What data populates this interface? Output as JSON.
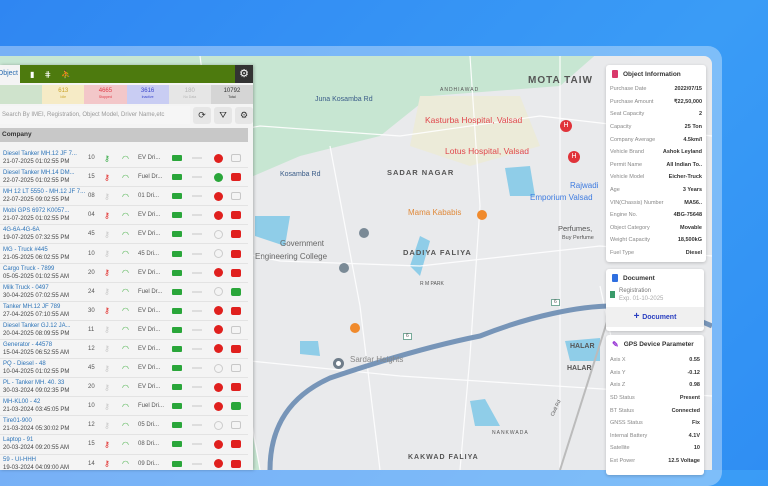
{
  "colors": {
    "topbar": "#4d7a0e",
    "link": "#2b73b8",
    "red": "#e0201e",
    "green": "#2aa63a"
  },
  "left_panel": {
    "tabs": [
      {
        "label": "Object",
        "icon": "object-icon"
      },
      {
        "icon": "battery-icon"
      },
      {
        "icon": "grid-icon"
      },
      {
        "icon": "person-icon"
      }
    ],
    "settings_icon": "gear-icon",
    "stats": [
      {
        "value": "",
        "label": "",
        "bg": "#cfe3cc",
        "color": "#3b8a3b"
      },
      {
        "value": "613",
        "label": "Idle",
        "bg": "#f6ebc6",
        "color": "#c9a227"
      },
      {
        "value": "4665",
        "label": "Stopped",
        "bg": "#f3c7c9",
        "color": "#e03b47"
      },
      {
        "value": "3616",
        "label": "Inactive",
        "bg": "#c9cdf3",
        "color": "#3b46cc"
      },
      {
        "value": "180",
        "label": "No Data",
        "bg": "#e6e6e6",
        "color": "#b5b5b5"
      },
      {
        "value": "10792",
        "label": "Total",
        "bg": "#d5d5d5",
        "color": "#333"
      }
    ],
    "search_placeholder": "Search By IMEI, Registration, Object Model, Driver Name,etc",
    "column_header": "Company",
    "rows": [
      {
        "name": "Diesel Tanker MH.12 JF 7...",
        "date": "21-07-2025 01:02:55 PM",
        "num": "10",
        "key": "green",
        "driver": "EV Dri...",
        "status": "red",
        "camera": "grey"
      },
      {
        "name": "Diesel Tanker MH.14 DM...",
        "date": "22-07-2025 01:02:55 PM",
        "num": "15",
        "key": "red",
        "driver": "Fuel Dr...",
        "status": "green",
        "camera": "red"
      },
      {
        "name": "MH 12 LT 5550 - MH.12 JF 7...",
        "date": "22-07-2025 09:02:55 PM",
        "num": "08",
        "key": "grey",
        "driver": "01 Dri...",
        "status": "red",
        "camera": "grey"
      },
      {
        "name": "Mobi GPS 6972 K0057...",
        "date": "21-07-2025 01:02:55 PM",
        "num": "04",
        "key": "red",
        "driver": "EV Dri...",
        "status": "red",
        "camera": "red"
      },
      {
        "name": "4G-6A-4G-6A",
        "date": "19-07-2025 07:32:55 PM",
        "num": "45",
        "key": "grey",
        "driver": "EV Dri...",
        "status": "grey",
        "camera": "red"
      },
      {
        "name": "MG - Truck #445",
        "date": "21-05-2025 06:02:55 PM",
        "num": "10",
        "key": "grey",
        "driver": "45 Dri...",
        "status": "grey",
        "camera": "red"
      },
      {
        "name": "Cargo Truck - 7899",
        "date": "05-05-2025 01:02:55 AM",
        "num": "20",
        "key": "red",
        "driver": "EV Dri...",
        "status": "red",
        "camera": "red"
      },
      {
        "name": "Milk Truck - 0497",
        "date": "30-04-2025 07:02:55 AM",
        "num": "24",
        "key": "grey",
        "driver": "Fuel Dr...",
        "status": "grey",
        "camera": "green"
      },
      {
        "name": "Tanker MH.12 JF 789",
        "date": "27-04-2025 07:10:55 AM",
        "num": "30",
        "key": "red",
        "driver": "EV Dri...",
        "status": "red",
        "camera": "red"
      },
      {
        "name": "Diesel Tanker GJ.12 JA...",
        "date": "20-04-2025 08:09:55 PM",
        "num": "11",
        "key": "grey",
        "driver": "EV Dri...",
        "status": "red",
        "camera": "grey"
      },
      {
        "name": "Generator - 44578",
        "date": "15-04-2025 06:52:55 AM",
        "num": "12",
        "key": "grey",
        "driver": "EV Dri...",
        "status": "red",
        "camera": "red"
      },
      {
        "name": "PQ - Diesel - 48",
        "date": "10-04-2025 01:02:55 PM",
        "num": "45",
        "key": "grey",
        "driver": "EV Dri...",
        "status": "grey",
        "camera": "grey"
      },
      {
        "name": "PL - Tanker MH. 40. 33",
        "date": "30-03-2024 09:02:35 PM",
        "num": "20",
        "key": "grey",
        "driver": "EV Dri...",
        "status": "red",
        "camera": "red"
      },
      {
        "name": "MH-KL00 - 42",
        "date": "21-03-2024 03:45:05 PM",
        "num": "10",
        "key": "grey",
        "driver": "Fuel Dri...",
        "status": "red",
        "camera": "green"
      },
      {
        "name": "Tire01-900",
        "date": "21-03-2024 05:30:02 PM",
        "num": "12",
        "key": "grey",
        "driver": "05 Dri...",
        "status": "grey",
        "camera": "grey"
      },
      {
        "name": "Laptop - 91",
        "date": "20-03-2024 09:20:55 AM",
        "num": "15",
        "key": "red",
        "driver": "08 Dri...",
        "status": "red",
        "camera": "red"
      },
      {
        "name": "59 - UI-HHH",
        "date": "19-03-2024 04:09:00 AM",
        "num": "14",
        "key": "red",
        "driver": "09 Dri...",
        "status": "red",
        "camera": "red"
      }
    ]
  },
  "map": {
    "labels": [
      "Juna Kosamba Rd",
      "ANDHIAWAD",
      "MOTA TAIW",
      "Kasturba Hospital, Valsad",
      "Lotus Hospital, Valsad",
      "Kosamba Rd",
      "SADAR NAGAR",
      "Rajwadi",
      "Emporium Valsad",
      "Mama Kababis",
      "Perfumes,",
      "Buy Perfume",
      "Government",
      "Engineering College",
      "DADIYA FALIYA",
      "R M PARK",
      "HALAR",
      "HALAR",
      "Sardar Heights",
      "Civil Rd",
      "NANKWADA",
      "KAKWAD FALIYA",
      "6",
      "6"
    ]
  },
  "object_info": {
    "title": "Object Information",
    "items": [
      {
        "k": "Purchase Date",
        "v": "2022/07/15"
      },
      {
        "k": "Purchase Amount",
        "v": "₹22,50,000"
      },
      {
        "k": "Seat Capacity",
        "v": "2"
      },
      {
        "k": "Capacity",
        "v": "25 Ton"
      },
      {
        "k": "Company Average",
        "v": "4.5km/l"
      },
      {
        "k": "Vehicle Brand",
        "v": "Ashok Leyland"
      },
      {
        "k": "Permit Name",
        "v": "All Indian To.."
      },
      {
        "k": "Vehicle Model",
        "v": "Eicher-Truck"
      },
      {
        "k": "Age",
        "v": "3 Years"
      },
      {
        "k": "VIN(Chassis) Number",
        "v": "MA56.."
      },
      {
        "k": "Engine No.",
        "v": "4BG-75648"
      },
      {
        "k": "Object Category",
        "v": "Movable"
      },
      {
        "k": "Weight Capacity",
        "v": "18,500kG"
      },
      {
        "k": "Fuel Type",
        "v": "Diesel"
      }
    ]
  },
  "document": {
    "title": "Document",
    "name": "Registration",
    "expiry": "Exp. 01-10-2025",
    "add_label": "Document"
  },
  "gps": {
    "title": "GPS Device Parameter",
    "items": [
      {
        "k": "Axis X",
        "v": "0.55"
      },
      {
        "k": "Axis Y",
        "v": "-0.12"
      },
      {
        "k": "Axis Z",
        "v": "0.98"
      },
      {
        "k": "SD Status",
        "v": "Present"
      },
      {
        "k": "BT Status",
        "v": "Connected"
      },
      {
        "k": "GNSS Status",
        "v": "Fix"
      },
      {
        "k": "Internal Battery",
        "v": "4.1V"
      },
      {
        "k": "Satellite",
        "v": "10"
      },
      {
        "k": "Ext Power",
        "v": "12.5 Voltage"
      }
    ]
  }
}
